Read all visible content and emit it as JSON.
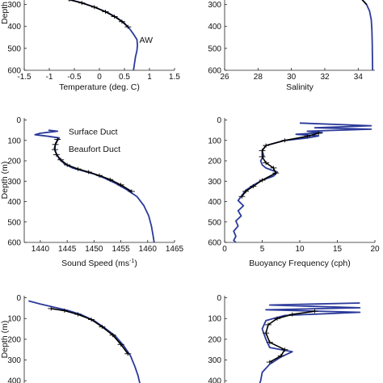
{
  "figure": {
    "background": "#ffffff"
  },
  "colors": {
    "model": "#2b3a9a",
    "obs": "#000000",
    "axis": "#222222"
  },
  "chart_data": [
    {
      "id": "temperature",
      "type": "line",
      "xlabel": "Temperature  (deg. C)",
      "ylabel": "Depth",
      "xlim": [
        -1.5,
        1.5
      ],
      "ylim": [
        600,
        250
      ],
      "xticks": [
        -1.5,
        -1,
        -0.5,
        0,
        0.5,
        1,
        1.5
      ],
      "xtick_labels": [
        "-1.5",
        "-1",
        "-0.5",
        "0",
        "0.5",
        "1",
        "1.5"
      ],
      "yticks": [
        300,
        400,
        500,
        600
      ],
      "ytick_labels": [
        "300",
        "400",
        "500",
        "600"
      ],
      "annotations": [
        {
          "text": "AW",
          "x": 0.75,
          "y": 460
        }
      ],
      "series": [
        {
          "role": "model",
          "x": [
            -1.15,
            -0.9,
            -0.65,
            -0.35,
            -0.1,
            0.15,
            0.35,
            0.5,
            0.6,
            0.68,
            0.75,
            0.76,
            0.75,
            0.72,
            0.7,
            0.68
          ],
          "y": [
            250,
            262,
            275,
            292,
            312,
            335,
            360,
            385,
            410,
            435,
            460,
            485,
            510,
            540,
            570,
            600
          ]
        },
        {
          "role": "obs",
          "errorbars": true,
          "x": [
            -1.1,
            -0.85,
            -0.6,
            -0.35,
            -0.1,
            0.12,
            0.3,
            0.45,
            0.57
          ],
          "y": [
            255,
            265,
            278,
            293,
            312,
            333,
            355,
            378,
            402
          ]
        }
      ]
    },
    {
      "id": "salinity",
      "type": "line",
      "xlabel": "Salinity",
      "xlim": [
        26,
        35
      ],
      "ylim": [
        600,
        250
      ],
      "xticks": [
        26,
        28,
        30,
        32,
        34
      ],
      "xtick_labels": [
        "26",
        "28",
        "30",
        "32",
        "34"
      ],
      "yticks": [
        300,
        400,
        500,
        600
      ],
      "ytick_labels": [
        "300",
        "400",
        "500",
        "600"
      ],
      "series": [
        {
          "role": "model",
          "x": [
            33.7,
            34.2,
            34.5,
            34.68,
            34.78,
            34.82,
            34.84,
            34.85,
            34.86
          ],
          "y": [
            250,
            275,
            300,
            330,
            370,
            420,
            480,
            540,
            600
          ]
        },
        {
          "role": "obs",
          "x": [
            33.8,
            34.2,
            34.5
          ],
          "y": [
            255,
            275,
            300
          ]
        }
      ]
    },
    {
      "id": "sound-speed",
      "type": "line",
      "xlabel": "Sound Speed (ms",
      "xlabel_sup": "-1",
      "xlabel_end": ")",
      "ylabel": "Depth (m)",
      "xlim": [
        1437,
        1465
      ],
      "ylim": [
        600,
        -10
      ],
      "xticks": [
        1440,
        1445,
        1450,
        1455,
        1460,
        1465
      ],
      "xtick_labels": [
        "1440",
        "1445",
        "1450",
        "1455",
        "1460",
        "1465"
      ],
      "yticks": [
        0,
        100,
        200,
        300,
        400,
        500,
        600
      ],
      "ytick_labels": [
        "0",
        "100",
        "200",
        "300",
        "400",
        "500",
        "600"
      ],
      "annotations": [
        {
          "text": "Surface Duct",
          "x": 1444.8,
          "y": 55
        },
        {
          "text": "Beaufort Duct",
          "x": 1444.8,
          "y": 140
        }
      ],
      "series": [
        {
          "role": "model",
          "x": [
            1441.5,
            1443.2,
            1441.5,
            1440,
            1439,
            1441.5,
            1443.5,
            1443.2,
            1442.8,
            1442.6,
            1442.9,
            1443.5,
            1444.5,
            1446,
            1448,
            1450,
            1452,
            1454,
            1456,
            1458,
            1459.3,
            1460.2,
            1460.7,
            1461,
            1461.2
          ],
          "y": [
            50,
            55,
            60,
            65,
            72,
            80,
            88,
            100,
            120,
            140,
            160,
            190,
            215,
            235,
            250,
            265,
            285,
            310,
            340,
            375,
            420,
            470,
            520,
            565,
            600
          ]
        },
        {
          "role": "obs",
          "errorbars": true,
          "x": [
            1443.2,
            1442.8,
            1442.7,
            1443,
            1443.8,
            1445,
            1447,
            1449,
            1451,
            1453,
            1455,
            1457
          ],
          "y": [
            95,
            120,
            145,
            170,
            195,
            220,
            240,
            255,
            272,
            292,
            318,
            350
          ]
        }
      ]
    },
    {
      "id": "buoyancy",
      "type": "line",
      "xlabel": "Buoyancy Frequency (cph)",
      "xlim": [
        0,
        20
      ],
      "ylim": [
        600,
        -10
      ],
      "xticks": [
        0,
        5,
        10,
        15,
        20
      ],
      "xtick_labels": [
        "0",
        "5",
        "10",
        "15",
        "20"
      ],
      "yticks": [
        0,
        100,
        200,
        300,
        400,
        500,
        600
      ],
      "ytick_labels": [
        "0",
        "100",
        "200",
        "300",
        "400",
        "500",
        "600"
      ],
      "series": [
        {
          "role": "model",
          "x": [
            10,
            19.5,
            12,
            19.5,
            11,
            13,
            9.5,
            12.5,
            11,
            8,
            5.5,
            5,
            5.2,
            4.8,
            5,
            5.5,
            6.2,
            7,
            6.5,
            5,
            3.8,
            2.8,
            2.3,
            1.8,
            2.5,
            1.8,
            2.2,
            1.5,
            1.8,
            1.2,
            1.5,
            1.2,
            1.5
          ],
          "y": [
            15,
            28,
            38,
            45,
            55,
            62,
            70,
            78,
            88,
            100,
            125,
            150,
            175,
            200,
            220,
            235,
            245,
            255,
            275,
            295,
            320,
            345,
            370,
            395,
            420,
            445,
            470,
            495,
            520,
            545,
            570,
            590,
            600
          ]
        },
        {
          "role": "obs",
          "errorbars": true,
          "x": [
            12.5,
            11,
            8,
            5.5,
            5,
            5,
            5.5,
            6.5,
            6.8,
            5,
            3.8,
            2.8,
            2.3
          ],
          "y": [
            65,
            80,
            100,
            125,
            150,
            180,
            210,
            235,
            260,
            295,
            325,
            350,
            375
          ]
        }
      ]
    },
    {
      "id": "bottom-left",
      "type": "line",
      "ylabel": "Depth (m)",
      "xlim": [
        1437,
        1465
      ],
      "ylim": [
        450,
        -10
      ],
      "yticks": [
        0,
        100,
        200,
        300,
        400
      ],
      "ytick_labels": [
        "0",
        "100",
        "200",
        "300",
        "400"
      ],
      "series": [
        {
          "role": "model",
          "x": [
            1437.8,
            1440,
            1442.5,
            1445,
            1447.5,
            1450,
            1452,
            1454,
            1455.5,
            1456.8,
            1457.6,
            1458.2,
            1458.6,
            1458.9
          ],
          "y": [
            15,
            30,
            45,
            60,
            80,
            110,
            145,
            185,
            230,
            280,
            330,
            375,
            420,
            450
          ]
        },
        {
          "role": "obs",
          "errorbars": true,
          "x": [
            1442,
            1444.5,
            1447,
            1449.5,
            1451.5,
            1453.5,
            1455,
            1456.3
          ],
          "y": [
            52,
            62,
            80,
            105,
            140,
            180,
            225,
            270
          ]
        }
      ]
    },
    {
      "id": "bottom-right",
      "type": "line",
      "xlim": [
        0,
        20
      ],
      "ylim": [
        450,
        -10
      ],
      "yticks": [
        0,
        100,
        200,
        300,
        400
      ],
      "ytick_labels": [
        "0",
        "100",
        "200",
        "300",
        "400"
      ],
      "series": [
        {
          "role": "model",
          "x": [
            18,
            6,
            18,
            5.5,
            18,
            8,
            5.5,
            5,
            5.5,
            6,
            9,
            7.5,
            6,
            5,
            4.8,
            4.5,
            4.5
          ],
          "y": [
            25,
            35,
            48,
            58,
            70,
            85,
            110,
            150,
            200,
            240,
            260,
            285,
            320,
            360,
            400,
            430,
            450
          ]
        },
        {
          "role": "obs",
          "errorbars": true,
          "x": [
            12,
            9,
            7,
            5.8,
            5.5,
            6,
            8,
            7.5,
            6
          ],
          "y": [
            65,
            80,
            100,
            130,
            170,
            215,
            250,
            280,
            310
          ]
        }
      ]
    }
  ]
}
